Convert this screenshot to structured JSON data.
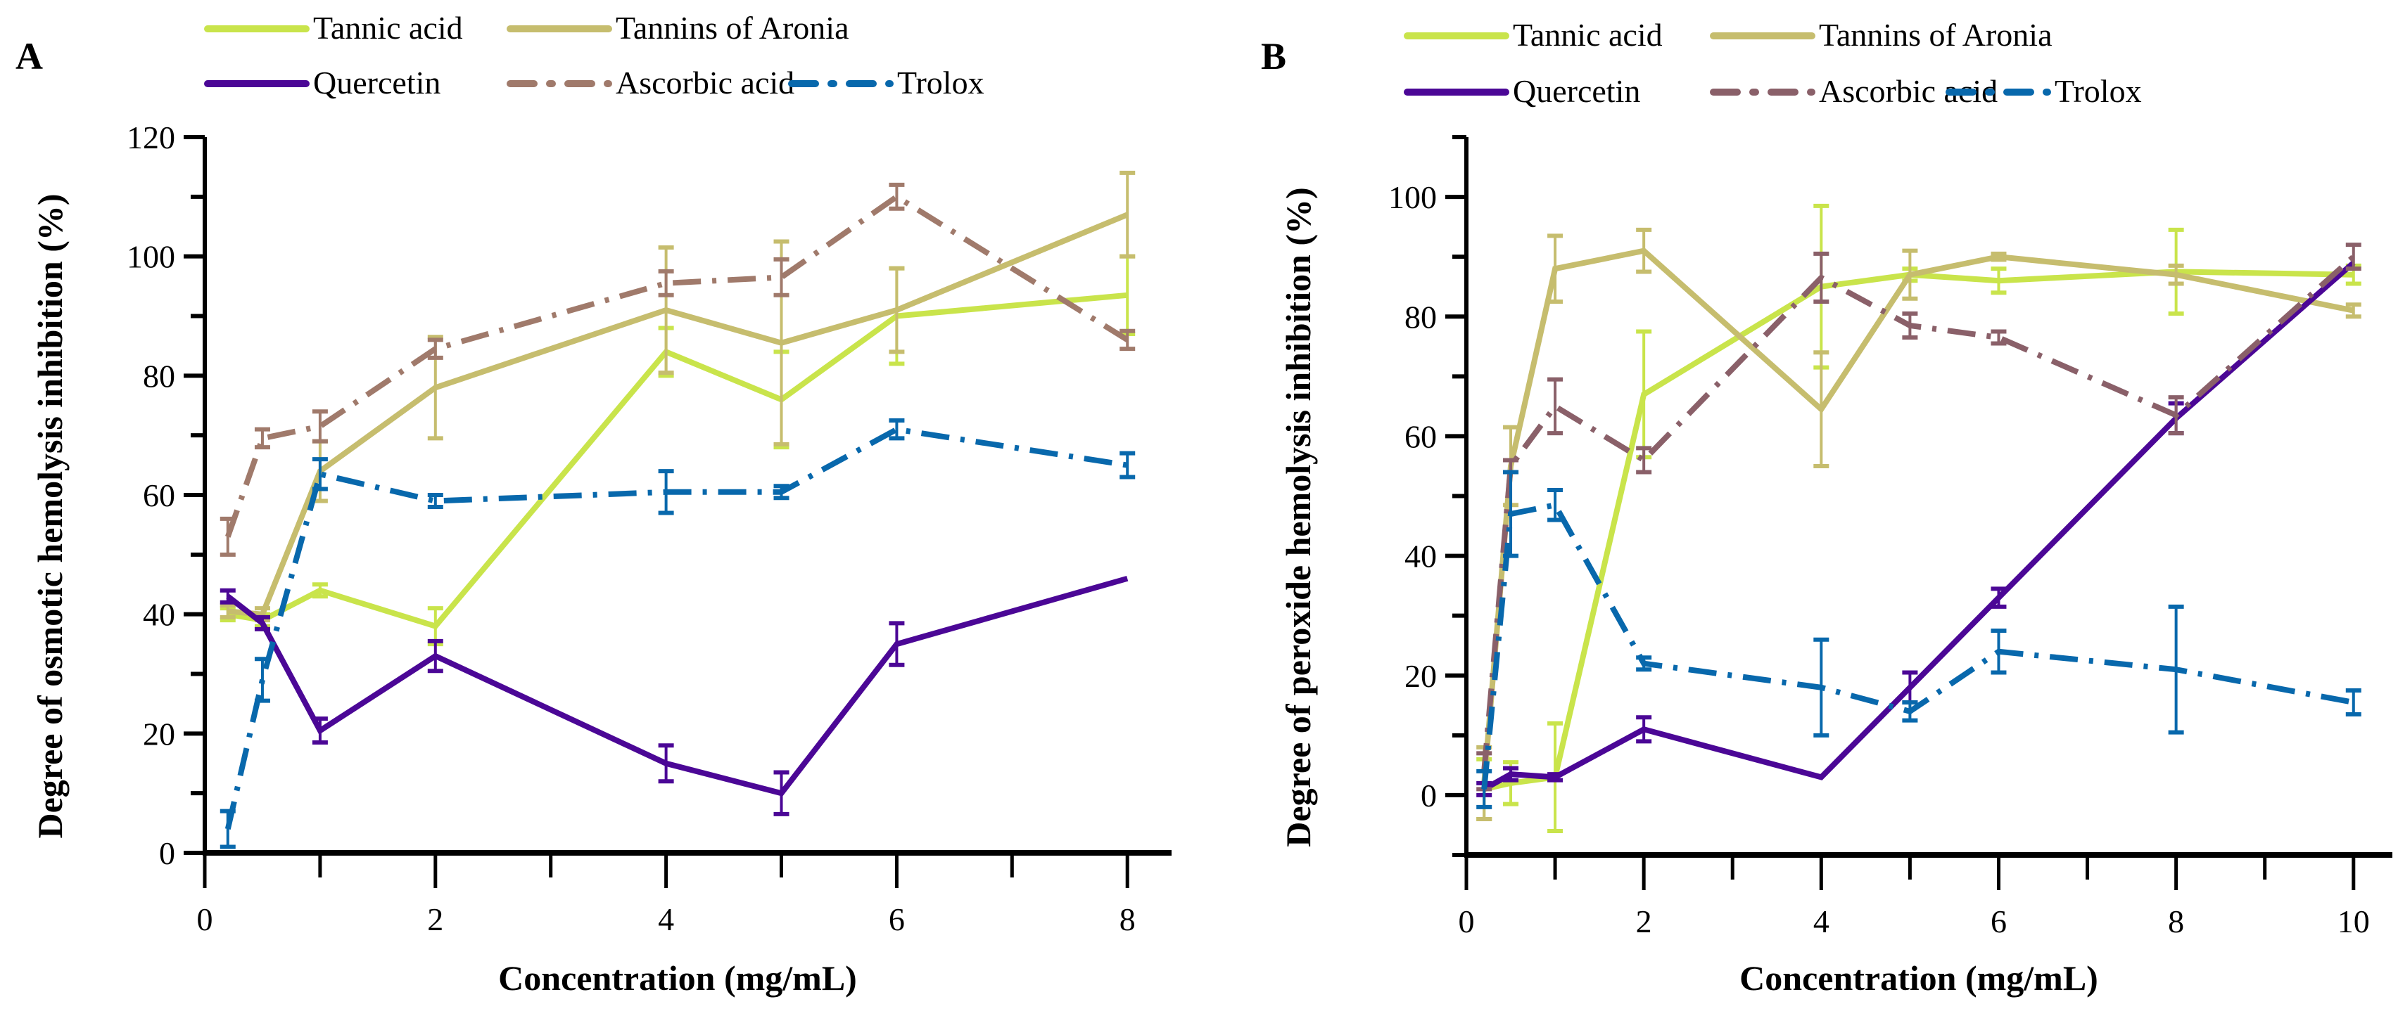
{
  "chart_data": [
    {
      "type": "line",
      "panel_label": "A",
      "title": "",
      "xlabel": "Concentration (mg/mL)",
      "ylabel": "Degree of osmotic hemolysis inhibition (%)",
      "xlim": [
        0,
        8.2
      ],
      "ylim": [
        0,
        120
      ],
      "xticks": [
        0,
        2,
        4,
        6,
        8
      ],
      "yticks": [
        0,
        20,
        40,
        60,
        80,
        100,
        120
      ],
      "legend_placement": "top",
      "x": [
        0.2,
        0.5,
        1,
        2,
        4,
        5,
        6,
        8
      ],
      "series": [
        {
          "name": "Tannic acid",
          "color": "#c9e44b",
          "style": "solid",
          "values": [
            40,
            39,
            44,
            38,
            84,
            76,
            90,
            93.5
          ],
          "errors": [
            1,
            1,
            1,
            3,
            4,
            8,
            8,
            6.5
          ]
        },
        {
          "name": "Tannins of Aronia",
          "color": "#c6bd6e",
          "style": "solid",
          "values": [
            40.5,
            40,
            64,
            78,
            91,
            85.5,
            91,
            107
          ],
          "errors": [
            1,
            1,
            5,
            8.5,
            10.5,
            17,
            7,
            7
          ]
        },
        {
          "name": "Quercetin",
          "color": "#4b0796",
          "style": "solid",
          "values": [
            43,
            38.5,
            20.5,
            33,
            15,
            10,
            35,
            46
          ],
          "errors": [
            1,
            1,
            2,
            2.5,
            3,
            3.5,
            3.5,
            0
          ]
        },
        {
          "name": "Ascorbic acid",
          "color": "#a07a6b",
          "style": "dashdot",
          "values": [
            53,
            69.5,
            71.5,
            84.5,
            95.5,
            96.5,
            110,
            86
          ],
          "errors": [
            3,
            1.5,
            2.5,
            1.5,
            2,
            3,
            2,
            1.5
          ]
        },
        {
          "name": "Trolox",
          "color": "#0868ac",
          "style": "dashdot",
          "values": [
            4,
            29,
            63.5,
            59,
            60.5,
            60.5,
            71,
            65
          ],
          "errors": [
            3,
            3.5,
            2.5,
            1,
            3.5,
            1,
            1.5,
            2
          ]
        }
      ]
    },
    {
      "type": "line",
      "panel_label": "B",
      "title": "",
      "xlabel": "Concentration (mg/mL)",
      "ylabel": "Degree of peroxide hemolysis inhibition (%)",
      "xlim": [
        0,
        10.2
      ],
      "ylim": [
        -10,
        110
      ],
      "xticks": [
        0,
        2,
        4,
        6,
        8,
        10
      ],
      "yticks": [
        0,
        20,
        40,
        60,
        80,
        100
      ],
      "legend_placement": "top",
      "x": [
        0.2,
        0.5,
        1,
        2,
        4,
        5,
        6,
        8,
        10
      ],
      "series": [
        {
          "name": "Tannic acid",
          "color": "#c9e44b",
          "style": "solid",
          "values": [
            1,
            2,
            3,
            67,
            85,
            87,
            86,
            87.5,
            87
          ],
          "errors": [
            5,
            3.5,
            9,
            10.5,
            13.5,
            1,
            2,
            7,
            1.5
          ]
        },
        {
          "name": "Tannins of Aronia",
          "color": "#c6bd6e",
          "style": "solid",
          "values": [
            2,
            55,
            88,
            91,
            64.5,
            87,
            90,
            87,
            81
          ],
          "errors": [
            6,
            6.5,
            5.5,
            3.5,
            9.5,
            4,
            0.5,
            1.5,
            1
          ]
        },
        {
          "name": "Quercetin",
          "color": "#4b0796",
          "style": "solid",
          "values": [
            1,
            3.5,
            3,
            11,
            3,
            18,
            33,
            63,
            89
          ],
          "errors": [
            1,
            1,
            0.5,
            2,
            0,
            2.5,
            1.5,
            2.5,
            0
          ]
        },
        {
          "name": "Ascorbic acid",
          "color": "#8a6069",
          "style": "dashdot",
          "values": [
            4,
            55,
            65,
            56,
            86.5,
            78.5,
            76.5,
            63.5,
            90
          ],
          "errors": [
            3,
            1,
            4.5,
            2,
            4,
            2,
            1,
            3,
            2
          ]
        },
        {
          "name": "Trolox",
          "color": "#0868ac",
          "style": "dashdot",
          "values": [
            1,
            47,
            48.5,
            22,
            18,
            14,
            24,
            21,
            15.5
          ],
          "errors": [
            3,
            7,
            2.5,
            1,
            8,
            1.5,
            3.5,
            10.5,
            2
          ]
        }
      ]
    }
  ]
}
